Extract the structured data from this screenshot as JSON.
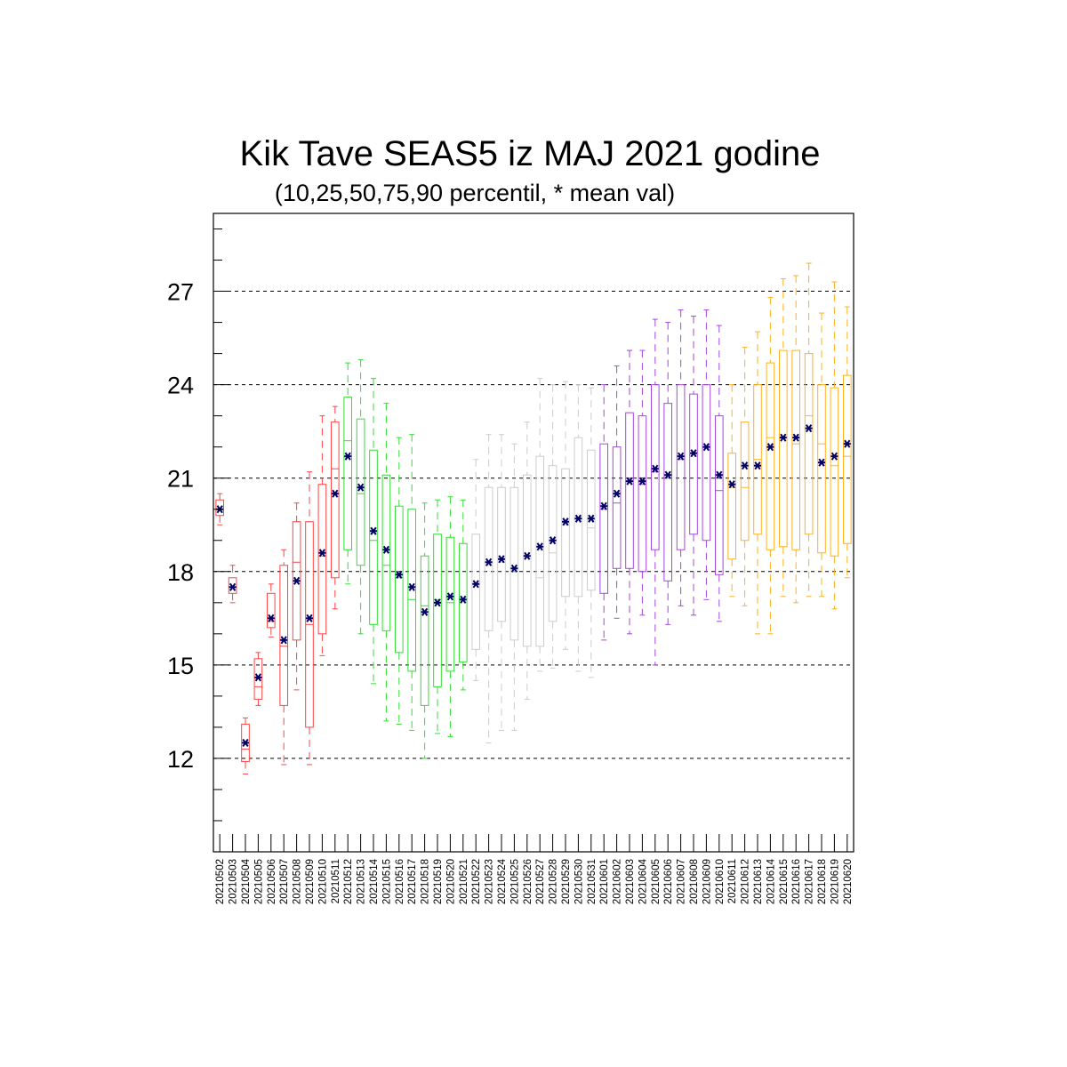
{
  "chart_data": {
    "type": "boxplot",
    "title": "Kik Tave SEAS5 iz MAJ 2021 godine",
    "subtitle": "(10,25,50,75,90 percentil, * mean val)",
    "ylim": [
      9,
      29.5
    ],
    "yticks": [
      12,
      15,
      18,
      21,
      24,
      27
    ],
    "grid": "horizontal dashed at major ticks",
    "mean_marker_color": "#000066",
    "period_colors": [
      "#ff4444",
      "#33dd33",
      "#cccccc",
      "#a646e0",
      "#ffb020"
    ],
    "categories": [
      "20210502",
      "20210503",
      "20210504",
      "20210505",
      "20210506",
      "20210507",
      "20210508",
      "20210509",
      "20210510",
      "20210511",
      "20210512",
      "20210513",
      "20210514",
      "20210515",
      "20210516",
      "20210517",
      "20210518",
      "20210519",
      "20210520",
      "20210521",
      "20210522",
      "20210523",
      "20210524",
      "20210525",
      "20210526",
      "20210527",
      "20210528",
      "20210529",
      "20210530",
      "20210531",
      "20210601",
      "20210602",
      "20210603",
      "20210604",
      "20210605",
      "20210606",
      "20210607",
      "20210608",
      "20210609",
      "20210610",
      "20210611",
      "20210612",
      "20210613",
      "20210614",
      "20210615",
      "20210616",
      "20210617",
      "20210618",
      "20210619",
      "20210620"
    ],
    "groups": [
      0,
      0,
      0,
      0,
      0,
      0,
      0,
      0,
      0,
      0,
      1,
      1,
      1,
      1,
      1,
      1,
      1,
      1,
      1,
      1,
      2,
      2,
      2,
      2,
      2,
      2,
      2,
      2,
      2,
      2,
      3,
      3,
      3,
      3,
      3,
      3,
      3,
      3,
      3,
      3,
      4,
      4,
      4,
      4,
      4,
      4,
      4,
      4,
      4,
      4
    ],
    "p10": [
      19.5,
      17.0,
      11.5,
      13.7,
      15.9,
      11.8,
      14.2,
      11.8,
      15.3,
      16.8,
      17.6,
      16.0,
      14.4,
      13.2,
      13.1,
      12.9,
      12.0,
      12.8,
      12.7,
      14.2,
      14.5,
      12.5,
      12.9,
      12.9,
      13.9,
      14.8,
      14.9,
      15.5,
      14.8,
      14.6,
      15.8,
      16.5,
      16.0,
      16.6,
      15.0,
      16.3,
      16.9,
      16.6,
      17.1,
      16.4,
      17.2,
      16.9,
      16.0,
      16.0,
      17.2,
      17.0,
      17.2,
      17.2,
      16.8,
      17.8
    ],
    "p25": [
      19.8,
      17.3,
      11.9,
      13.9,
      16.2,
      13.7,
      15.8,
      13.0,
      16.0,
      17.8,
      18.7,
      18.2,
      16.3,
      16.1,
      15.4,
      14.8,
      13.7,
      14.3,
      14.8,
      15.1,
      15.5,
      16.1,
      16.4,
      15.8,
      15.6,
      15.6,
      16.4,
      17.2,
      17.2,
      17.4,
      17.3,
      18.1,
      18.1,
      18.0,
      18.7,
      17.7,
      18.7,
      19.2,
      19.0,
      17.9,
      18.4,
      19.0,
      19.2,
      18.7,
      18.8,
      18.7,
      19.2,
      18.6,
      18.5,
      18.9
    ],
    "p50": [
      20.0,
      17.5,
      12.3,
      14.3,
      16.4,
      15.6,
      18.3,
      16.3,
      18.5,
      21.3,
      22.2,
      20.5,
      19.0,
      18.2,
      17.8,
      17.1,
      16.9,
      17.1,
      17.0,
      17.1,
      17.6,
      18.2,
      18.3,
      18.0,
      18.5,
      17.8,
      18.6,
      19.5,
      19.7,
      19.4,
      20.0,
      20.2,
      21.0,
      20.8,
      21.2,
      21.0,
      21.6,
      21.8,
      22.0,
      20.6,
      20.7,
      20.7,
      21.6,
      22.3,
      22.3,
      22.1,
      23.0,
      22.1,
      21.4,
      21.7
    ],
    "p75": [
      20.3,
      17.8,
      13.1,
      15.2,
      17.3,
      18.2,
      19.6,
      19.6,
      20.8,
      22.8,
      23.6,
      22.9,
      21.9,
      21.1,
      20.1,
      20.0,
      18.5,
      19.2,
      19.1,
      18.9,
      19.2,
      20.7,
      20.7,
      20.7,
      21.1,
      21.7,
      21.4,
      21.3,
      22.3,
      21.9,
      22.1,
      22.0,
      23.1,
      23.0,
      24.0,
      23.4,
      24.0,
      23.7,
      24.0,
      23.0,
      21.8,
      22.8,
      24.0,
      24.7,
      25.1,
      25.1,
      25.0,
      24.0,
      23.9,
      24.3
    ],
    "p90": [
      20.5,
      18.2,
      13.3,
      15.4,
      17.6,
      18.7,
      20.2,
      21.2,
      23.0,
      23.3,
      24.7,
      24.8,
      24.2,
      23.4,
      22.3,
      22.4,
      20.2,
      20.3,
      20.4,
      20.3,
      21.6,
      22.4,
      22.4,
      22.1,
      22.8,
      24.2,
      24.0,
      24.1,
      24.0,
      23.9,
      24.0,
      24.6,
      25.1,
      25.1,
      26.1,
      26.0,
      26.4,
      26.2,
      26.4,
      25.9,
      24.0,
      25.2,
      25.7,
      26.8,
      27.4,
      27.5,
      27.9,
      26.3,
      27.3,
      26.5
    ],
    "mean": [
      20.0,
      17.5,
      12.5,
      14.6,
      16.5,
      15.8,
      17.7,
      16.5,
      18.6,
      20.5,
      21.7,
      20.7,
      19.3,
      18.7,
      17.9,
      17.5,
      16.7,
      17.0,
      17.2,
      17.1,
      17.6,
      18.3,
      18.4,
      18.1,
      18.5,
      18.8,
      19.0,
      19.6,
      19.7,
      19.7,
      20.1,
      20.5,
      20.9,
      20.9,
      21.3,
      21.1,
      21.7,
      21.8,
      22.0,
      21.1,
      20.8,
      21.4,
      21.4,
      22.0,
      22.3,
      22.3,
      22.6,
      21.5,
      21.7,
      22.1
    ]
  }
}
